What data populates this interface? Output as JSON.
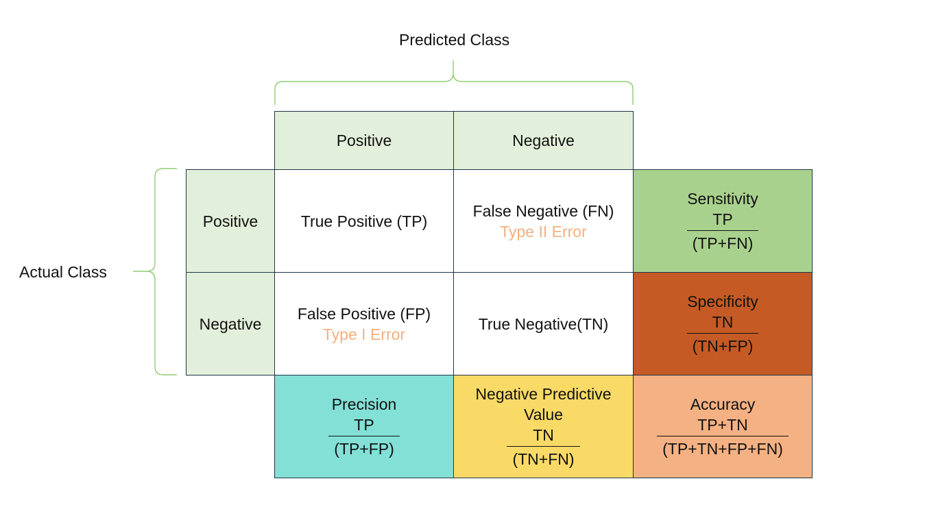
{
  "predicted_class_label": "Predicted Class",
  "actual_class_label": "Actual Class",
  "columns": {
    "positive": "Positive",
    "negative": "Negative"
  },
  "rows": {
    "positive": "Positive",
    "negative": "Negative"
  },
  "cells": {
    "tp": "True Positive (TP)",
    "fn": "False Negative (FN)",
    "fn_error": "Type II Error",
    "fp": "False Positive (FP)",
    "fp_error": "Type I Error",
    "tn": "True Negative(TN)"
  },
  "metrics": {
    "sensitivity": {
      "name": "Sensitivity",
      "numerator": "TP",
      "denominator": "(TP+FN)"
    },
    "specificity": {
      "name": "Specificity",
      "numerator": "TN",
      "denominator": "(TN+FP)"
    },
    "precision": {
      "name": "Precision",
      "numerator": "TP",
      "denominator": "(TP+FP)"
    },
    "npv": {
      "name": "Negative Predictive Value",
      "numerator": "TN",
      "denominator": "(TN+FN)"
    },
    "accuracy": {
      "name": "Accuracy",
      "numerator": "TP+TN",
      "denominator": "(TP+TN+FP+FN)"
    }
  },
  "colors": {
    "header_fill": "#e2efda",
    "sensitivity_fill": "#a9d18e",
    "specificity_fill": "#c55a24",
    "precision_fill": "#83e0d6",
    "npv_fill": "#f9da66",
    "accuracy_fill": "#f4b183",
    "error_text": "#f2b17f",
    "brace": "#8fcc72",
    "border": "#1f3347"
  }
}
